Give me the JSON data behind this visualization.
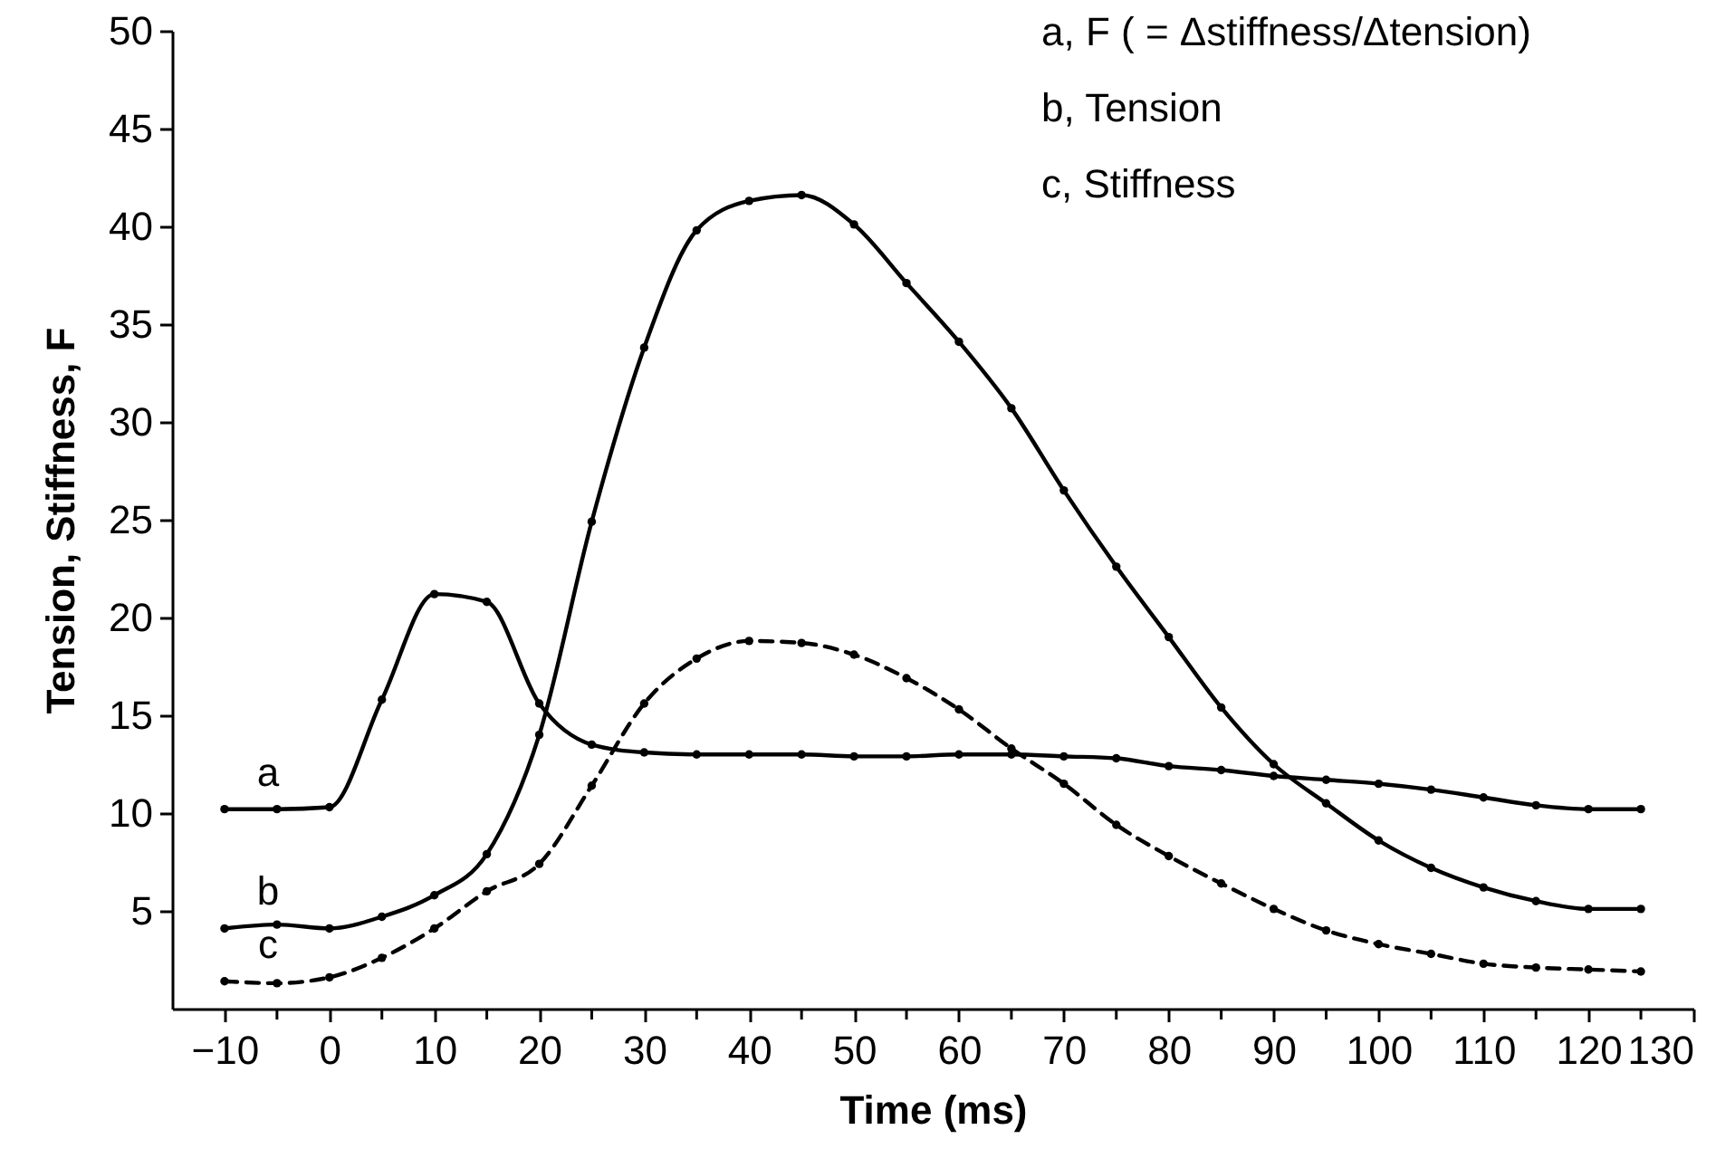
{
  "chart_data": {
    "type": "line",
    "xlabel": "Time (ms)",
    "ylabel": "Tension, Stiffness, F",
    "x": [
      -10,
      -5,
      0,
      5,
      10,
      15,
      20,
      25,
      30,
      35,
      40,
      45,
      50,
      55,
      60,
      65,
      70,
      75,
      80,
      85,
      90,
      95,
      100,
      105,
      110,
      115,
      120,
      125
    ],
    "series": [
      {
        "name": "a",
        "color": "#000000",
        "line_style": "solid",
        "values": [
          10.2,
          10.2,
          10.3,
          15.8,
          21.2,
          20.8,
          15.6,
          13.5,
          13.1,
          13.0,
          13.0,
          13.0,
          12.9,
          12.9,
          13.0,
          13.0,
          12.9,
          12.8,
          12.4,
          12.2,
          11.9,
          11.7,
          11.5,
          11.2,
          10.8,
          10.4,
          10.2,
          10.2
        ]
      },
      {
        "name": "b",
        "color": "#000000",
        "line_style": "solid",
        "values": [
          4.1,
          4.3,
          4.1,
          4.7,
          5.8,
          7.9,
          14.0,
          24.9,
          33.8,
          39.8,
          41.3,
          41.6,
          40.1,
          37.1,
          34.1,
          30.7,
          26.5,
          22.6,
          19.0,
          15.4,
          12.5,
          10.5,
          8.6,
          7.2,
          6.2,
          5.5,
          5.1,
          5.1
        ]
      },
      {
        "name": "c",
        "color": "#000000",
        "line_style": "dashed",
        "values": [
          1.4,
          1.3,
          1.6,
          2.6,
          4.1,
          6.0,
          7.4,
          11.4,
          15.6,
          17.9,
          18.8,
          18.7,
          18.1,
          16.9,
          15.3,
          13.3,
          11.5,
          9.4,
          7.8,
          6.4,
          5.1,
          4.0,
          3.3,
          2.8,
          2.3,
          2.1,
          2.0,
          1.9
        ]
      }
    ],
    "marker": "circle",
    "xlim": [
      -15,
      130
    ],
    "xticks": [
      -10,
      {
        "value": -5,
        "label": null
      },
      0,
      {
        "value": 5,
        "label": null
      },
      10,
      {
        "value": 15,
        "label": null
      },
      20,
      {
        "value": 25,
        "label": null
      },
      30,
      {
        "value": 35,
        "label": null
      },
      40,
      {
        "value": 45,
        "label": null
      },
      50,
      {
        "value": 55,
        "label": null
      },
      60,
      {
        "value": 65,
        "label": null
      },
      70,
      {
        "value": 75,
        "label": null
      },
      80,
      {
        "value": 85,
        "label": null
      },
      90,
      {
        "value": 95,
        "label": null
      },
      100,
      {
        "value": 105,
        "label": null
      },
      110,
      {
        "value": 115,
        "label": null
      },
      120,
      {
        "value": 125,
        "label": null
      },
      130
    ],
    "ylim": [
      0,
      50
    ],
    "yticks": [
      5,
      10,
      15,
      20,
      25,
      30,
      35,
      40,
      45,
      50
    ],
    "annotations": [
      "a, F ( = Δstiffness/Δtension)",
      "b, Tension",
      "c, Stiffness"
    ]
  }
}
